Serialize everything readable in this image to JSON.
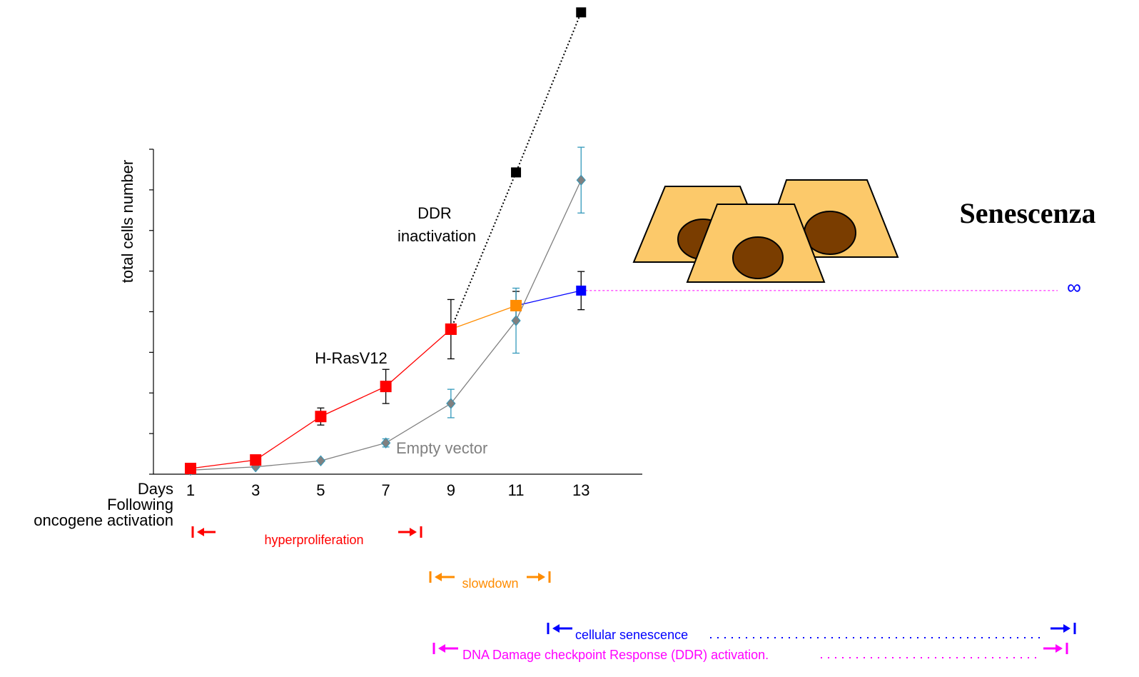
{
  "chart_data": {
    "type": "line",
    "ylabel": "total cells number",
    "xlabel": [
      "Days",
      "Following",
      "oncogene activation"
    ],
    "xlim": [
      -0.14,
      14.88
    ],
    "xticks": [
      1,
      3,
      5,
      7,
      9,
      11,
      13
    ],
    "ylim": [
      0,
      8
    ],
    "yticks": [
      0,
      1,
      2,
      3,
      4,
      5,
      6,
      7,
      8
    ],
    "series": [
      {
        "name": "H-RasV12",
        "color": "#ff0000",
        "marker": "square",
        "dash": false,
        "x": [
          1,
          3,
          5,
          7,
          9
        ],
        "values": [
          0.14,
          0.35,
          1.42,
          2.16,
          3.57
        ],
        "errors": [
          null,
          null,
          0.21,
          0.42,
          0.73
        ],
        "error_color": "#000000"
      },
      {
        "color": "#ff8c00",
        "marker": "square",
        "dash": false,
        "x": [
          9,
          11
        ],
        "values": [
          3.57,
          4.15
        ],
        "errors": [
          null,
          0.35
        ],
        "error_color": "#000000"
      },
      {
        "color": "#0000ff",
        "marker": "square",
        "dash": false,
        "x": [
          11,
          13
        ],
        "values": [
          4.15,
          4.52
        ],
        "errors": [
          null,
          0.47
        ],
        "error_color": "#000000"
      },
      {
        "name": "DDR inactivation",
        "color": "#000000",
        "marker": "square",
        "dash": true,
        "x": [
          9,
          11,
          13
        ],
        "values": [
          3.57,
          7.43,
          11.37
        ]
      },
      {
        "name": "Empty vector",
        "color": "#808080",
        "marker": "diamond",
        "dash": false,
        "x": [
          1,
          3,
          5,
          7,
          9,
          11,
          13
        ],
        "values": [
          0.1,
          0.18,
          0.33,
          0.77,
          1.74,
          3.78,
          7.24
        ],
        "errors": [
          null,
          null,
          null,
          0.1,
          0.35,
          0.8,
          0.81
        ],
        "error_color": "#3399bb"
      }
    ],
    "side_title": "Senescenza",
    "infinity": "∞",
    "phases": [
      {
        "label": "hyperproliferation",
        "color": "#ff0000"
      },
      {
        "label": "slowdown",
        "color": "#ff8c00"
      },
      {
        "label": "cellular senescence",
        "color": "#0000ff"
      },
      {
        "label": "DNA Damage checkpoint Response (DDR) activation.",
        "color": "#ff00ff"
      }
    ]
  }
}
